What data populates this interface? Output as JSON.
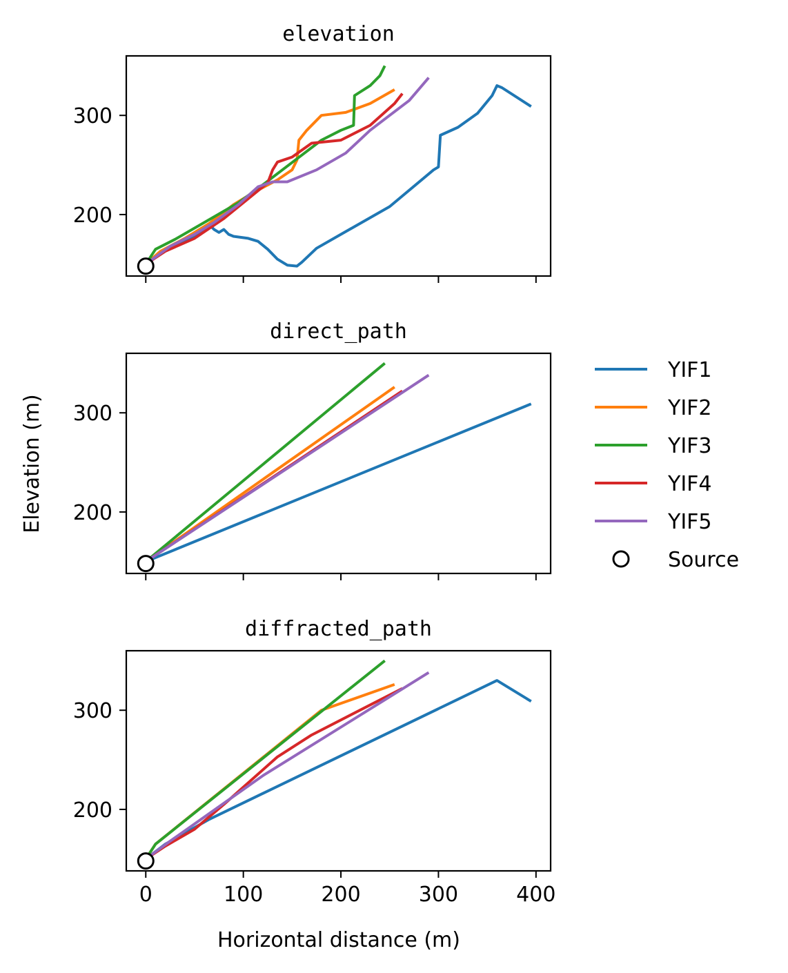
{
  "colors": {
    "YIF1": "#1f77b4",
    "YIF2": "#ff7f0e",
    "YIF3": "#2ca02c",
    "YIF4": "#d62728",
    "YIF5": "#9467bd",
    "source_edge": "#000000",
    "source_face": "#ffffff"
  },
  "figure": {
    "ylabel": "Elevation (m)",
    "xlabel": "Horizontal distance (m)"
  },
  "legend": {
    "placement": "right-center",
    "entries": [
      {
        "name": "YIF1",
        "marker": "line"
      },
      {
        "name": "YIF2",
        "marker": "line"
      },
      {
        "name": "YIF3",
        "marker": "line"
      },
      {
        "name": "YIF4",
        "marker": "line"
      },
      {
        "name": "YIF5",
        "marker": "line"
      },
      {
        "name": "Source",
        "marker": "circle"
      }
    ]
  },
  "chart_data": [
    {
      "type": "line",
      "title": "elevation",
      "xlim": [
        -20,
        415
      ],
      "ylim": [
        138,
        360
      ],
      "xticks": [
        0,
        100,
        200,
        300,
        400
      ],
      "yticks": [
        200,
        300
      ],
      "show_xticklabels": false,
      "grid": false,
      "series": [
        {
          "name": "YIF1",
          "points": [
            [
              0,
              150
            ],
            [
              20,
              165
            ],
            [
              40,
              174
            ],
            [
              55,
              180
            ],
            [
              65,
              190
            ],
            [
              70,
              185
            ],
            [
              75,
              182
            ],
            [
              80,
              185
            ],
            [
              85,
              180
            ],
            [
              90,
              178
            ],
            [
              105,
              176
            ],
            [
              115,
              173
            ],
            [
              125,
              165
            ],
            [
              135,
              155
            ],
            [
              145,
              149
            ],
            [
              155,
              148
            ],
            [
              160,
              152
            ],
            [
              175,
              166
            ],
            [
              200,
              180
            ],
            [
              250,
              208
            ],
            [
              295,
              245
            ],
            [
              300,
              248
            ],
            [
              302,
              280
            ],
            [
              320,
              288
            ],
            [
              340,
              302
            ],
            [
              355,
              320
            ],
            [
              360,
              330
            ],
            [
              365,
              328
            ],
            [
              395,
              309
            ]
          ]
        },
        {
          "name": "YIF2",
          "points": [
            [
              0,
              150
            ],
            [
              15,
              163
            ],
            [
              40,
              176
            ],
            [
              65,
              191
            ],
            [
              90,
              210
            ],
            [
              110,
              222
            ],
            [
              135,
              235
            ],
            [
              150,
              245
            ],
            [
              155,
              255
            ],
            [
              157,
              275
            ],
            [
              165,
              285
            ],
            [
              180,
              300
            ],
            [
              205,
              303
            ],
            [
              230,
              312
            ],
            [
              255,
              326
            ]
          ]
        },
        {
          "name": "YIF3",
          "points": [
            [
              0,
              150
            ],
            [
              10,
              165
            ],
            [
              30,
              175
            ],
            [
              60,
              192
            ],
            [
              95,
              212
            ],
            [
              120,
              230
            ],
            [
              140,
              245
            ],
            [
              160,
              260
            ],
            [
              180,
              275
            ],
            [
              200,
              285
            ],
            [
              213,
              290
            ],
            [
              214,
              320
            ],
            [
              230,
              330
            ],
            [
              240,
              340
            ],
            [
              245,
              350
            ]
          ]
        },
        {
          "name": "YIF4",
          "points": [
            [
              0,
              150
            ],
            [
              20,
              163
            ],
            [
              50,
              176
            ],
            [
              80,
              196
            ],
            [
              110,
              220
            ],
            [
              125,
              232
            ],
            [
              130,
              245
            ],
            [
              135,
              253
            ],
            [
              150,
              258
            ],
            [
              170,
              272
            ],
            [
              200,
              275
            ],
            [
              230,
              290
            ],
            [
              255,
              312
            ],
            [
              263,
              322
            ]
          ]
        },
        {
          "name": "YIF5",
          "points": [
            [
              0,
              150
            ],
            [
              25,
              168
            ],
            [
              50,
              180
            ],
            [
              70,
              192
            ],
            [
              95,
              210
            ],
            [
              115,
              228
            ],
            [
              130,
              233
            ],
            [
              145,
              233
            ],
            [
              175,
              245
            ],
            [
              205,
              262
            ],
            [
              230,
              285
            ],
            [
              250,
              300
            ],
            [
              270,
              315
            ],
            [
              290,
              338
            ]
          ]
        }
      ],
      "source": {
        "x": 0,
        "y": 148
      }
    },
    {
      "type": "line",
      "title": "direct_path",
      "xlim": [
        -20,
        415
      ],
      "ylim": [
        138,
        360
      ],
      "xticks": [
        0,
        100,
        200,
        300,
        400
      ],
      "yticks": [
        200,
        300
      ],
      "show_xticklabels": false,
      "grid": false,
      "series": [
        {
          "name": "YIF1",
          "points": [
            [
              0,
              150
            ],
            [
              395,
              309
            ]
          ]
        },
        {
          "name": "YIF2",
          "points": [
            [
              0,
              150
            ],
            [
              255,
              326
            ]
          ]
        },
        {
          "name": "YIF3",
          "points": [
            [
              0,
              150
            ],
            [
              245,
              350
            ]
          ]
        },
        {
          "name": "YIF4",
          "points": [
            [
              0,
              150
            ],
            [
              263,
              322
            ]
          ]
        },
        {
          "name": "YIF5",
          "points": [
            [
              0,
              150
            ],
            [
              290,
              338
            ]
          ]
        }
      ],
      "source": {
        "x": 0,
        "y": 148
      }
    },
    {
      "type": "line",
      "title": "diffracted_path",
      "xlim": [
        -20,
        415
      ],
      "ylim": [
        138,
        360
      ],
      "xticks": [
        0,
        100,
        200,
        300,
        400
      ],
      "yticks": [
        200,
        300
      ],
      "show_xticklabels": true,
      "grid": false,
      "series": [
        {
          "name": "YIF1",
          "points": [
            [
              0,
              150
            ],
            [
              20,
              165
            ],
            [
              65,
              190
            ],
            [
              360,
              330
            ],
            [
              395,
              309
            ]
          ]
        },
        {
          "name": "YIF2",
          "points": [
            [
              0,
              150
            ],
            [
              10,
              165
            ],
            [
              180,
              300
            ],
            [
              255,
              326
            ]
          ]
        },
        {
          "name": "YIF3",
          "points": [
            [
              0,
              150
            ],
            [
              10,
              165
            ],
            [
              245,
              350
            ]
          ]
        },
        {
          "name": "YIF4",
          "points": [
            [
              0,
              150
            ],
            [
              20,
              163
            ],
            [
              50,
              180
            ],
            [
              80,
              205
            ],
            [
              135,
              253
            ],
            [
              170,
              275
            ],
            [
              263,
              322
            ]
          ]
        },
        {
          "name": "YIF5",
          "points": [
            [
              0,
              150
            ],
            [
              25,
              168
            ],
            [
              120,
              234
            ],
            [
              290,
              338
            ]
          ]
        }
      ],
      "source": {
        "x": 0,
        "y": 148
      }
    }
  ]
}
